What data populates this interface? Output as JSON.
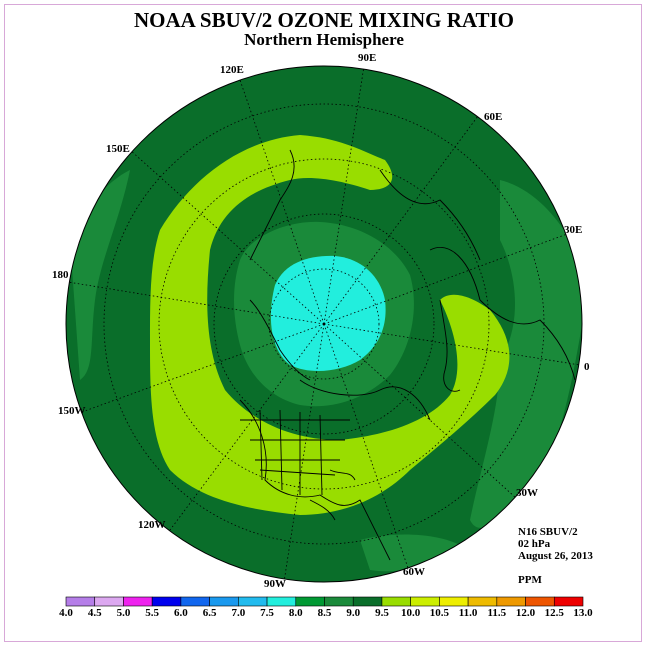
{
  "title": "NOAA SBUV/2 OZONE MIXING RATIO",
  "subtitle": "Northern Hemisphere",
  "longitude_labels": [
    "90E",
    "60E",
    "30E",
    "0",
    "30W",
    "60W",
    "90W",
    "120W",
    "150W",
    "180",
    "150E",
    "120E"
  ],
  "info": {
    "instrument": "N16 SBUV/2",
    "pressure": "02 hPa",
    "date": "August 26, 2013",
    "units": "PPM"
  },
  "colorbar": {
    "ticks": [
      "4.0",
      "4.5",
      "5.0",
      "5.5",
      "6.0",
      "6.5",
      "7.0",
      "7.5",
      "8.0",
      "8.5",
      "9.0",
      "9.5",
      "10.0",
      "10.5",
      "11.0",
      "11.5",
      "12.0",
      "12.5",
      "13.0"
    ],
    "colors": [
      "#b57ee8",
      "#dca8f0",
      "#ee22ee",
      "#0000ee",
      "#1166ee",
      "#1a99ee",
      "#22bbee",
      "#22eedd",
      "#009933",
      "#1a8a3a",
      "#0a6e2a",
      "#99dd00",
      "#ccee00",
      "#eeee00",
      "#eebb00",
      "#ee9900",
      "#ee5500",
      "#ee0000",
      "#885533"
    ]
  }
}
